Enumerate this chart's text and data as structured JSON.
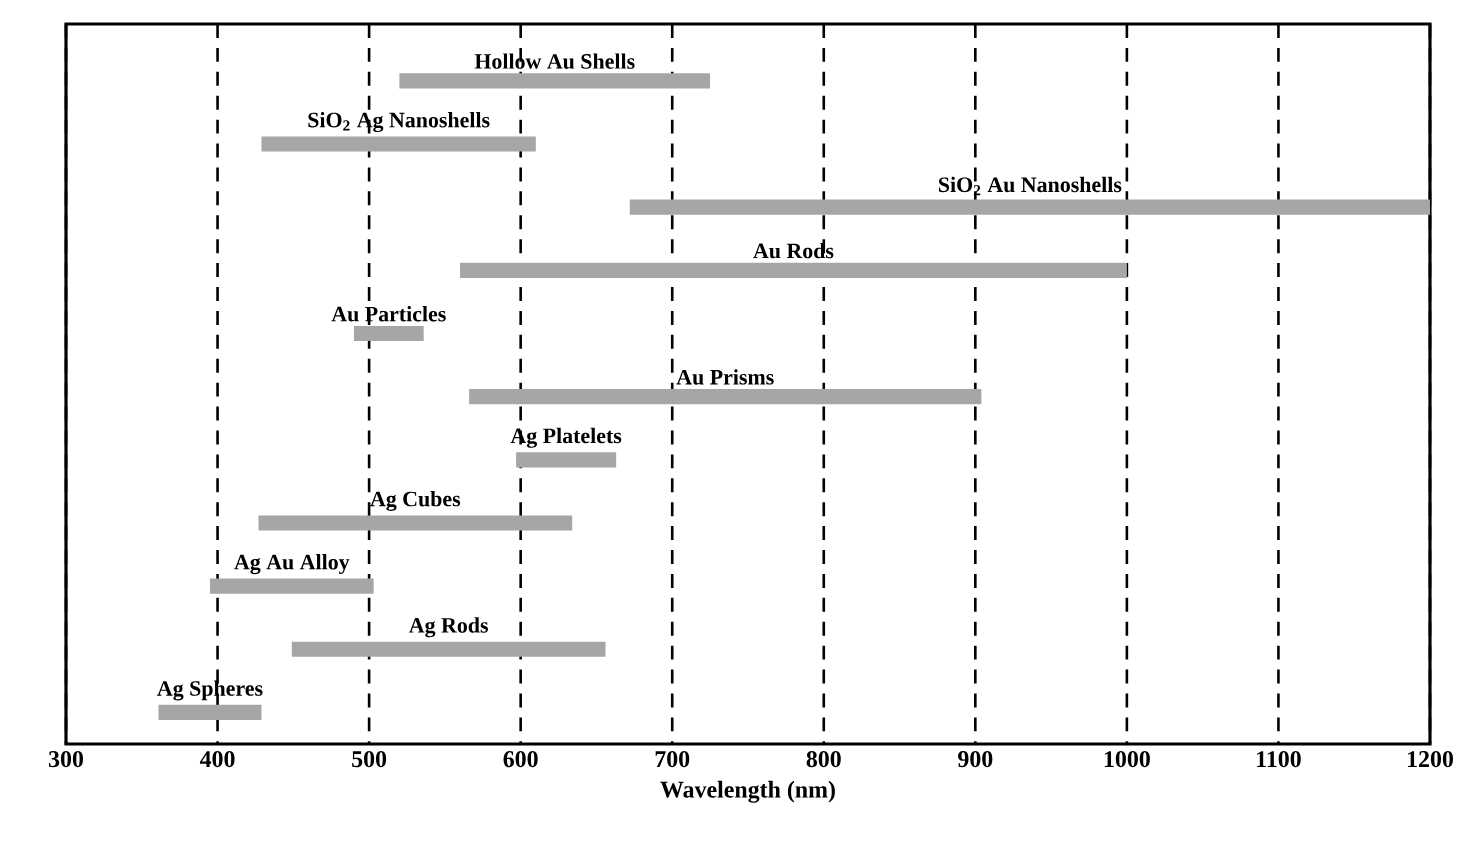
{
  "chart_data": {
    "type": "bar",
    "orientation": "horizontal",
    "categories": [
      "Hollow Au Shells",
      "SiO$_{2}$ Ag Nanoshells",
      "SiO$_{2}$ Au Nanoshells",
      "Au Rods",
      "Au Particles",
      "Au Prisms",
      "Ag Platelets",
      "Ag Cubes",
      "Ag Au Alloy",
      "Ag Rods",
      "Ag Spheres"
    ],
    "base": [
      520,
      429,
      672,
      560,
      490,
      566,
      597,
      427,
      395,
      449,
      361
    ],
    "values": [
      205,
      181,
      528,
      440,
      46,
      338,
      66,
      207,
      108,
      207,
      68
    ],
    "color": "#a6a6a6",
    "xlim": [
      300,
      1200
    ],
    "xticks": [
      300,
      400,
      500,
      600,
      700,
      800,
      900,
      1000,
      1100,
      1200
    ],
    "xlabel": "Wavelength (nm)",
    "grid": "x",
    "tick_labels": "x"
  }
}
